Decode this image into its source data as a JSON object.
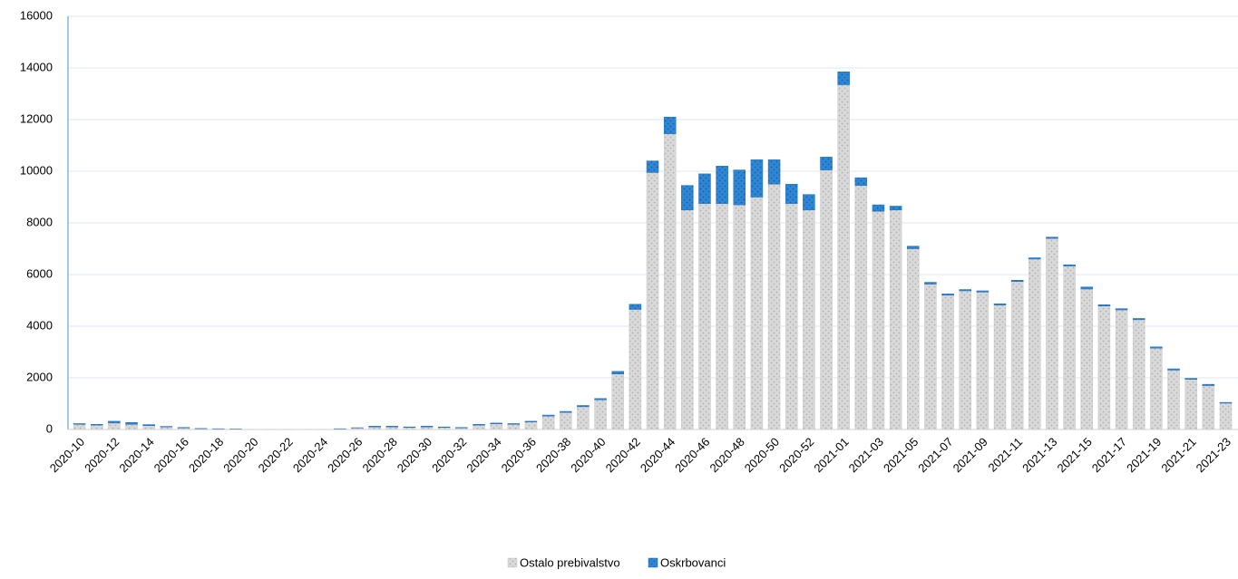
{
  "chart_data": {
    "type": "stacked_bar",
    "categories": [
      "2020-10",
      null,
      "2020-12",
      null,
      "2020-14",
      null,
      "2020-16",
      null,
      "2020-18",
      null,
      "2020-20",
      null,
      "2020-22",
      null,
      "2020-24",
      null,
      "2020-26",
      null,
      "2020-28",
      null,
      "2020-30",
      null,
      "2020-32",
      null,
      "2020-34",
      null,
      "2020-36",
      null,
      "2020-38",
      null,
      "2020-40",
      null,
      "2020-42",
      null,
      "2020-44",
      null,
      "2020-46",
      null,
      "2020-48",
      null,
      "2020-50",
      null,
      "2020-52",
      null,
      "2021-01",
      null,
      "2021-03",
      null,
      "2021-05",
      null,
      "2021-07",
      null,
      "2021-09",
      null,
      "2021-11",
      null,
      "2021-13",
      null,
      "2021-15",
      null,
      "2021-17",
      null,
      "2021-19",
      null,
      "2021-21",
      null,
      "2021-23"
    ],
    "series": [
      {
        "name": "Ostalo prebivalstvo",
        "color": "#d9d9d9",
        "values": [
          200,
          170,
          250,
          200,
          150,
          100,
          60,
          30,
          25,
          10,
          5,
          5,
          5,
          5,
          5,
          25,
          60,
          100,
          100,
          80,
          100,
          80,
          60,
          170,
          220,
          200,
          290,
          520,
          660,
          880,
          1150,
          2150,
          4650,
          9950,
          11450,
          8500,
          8750,
          8750,
          8700,
          9000,
          9500,
          8750,
          8500,
          10050,
          13350,
          9450,
          8450,
          8500,
          7000,
          5630,
          5200,
          5370,
          5320,
          4820,
          5730,
          6600,
          7400,
          6330,
          5440,
          4780,
          4630,
          4250,
          3150,
          2300,
          1940,
          1700,
          1020
        ]
      },
      {
        "name": "Oskrbovanci",
        "color": "#2e86d4",
        "values": [
          30,
          30,
          70,
          70,
          40,
          20,
          20,
          10,
          5,
          5,
          0,
          0,
          0,
          0,
          0,
          5,
          10,
          30,
          30,
          20,
          30,
          20,
          20,
          30,
          30,
          30,
          30,
          40,
          40,
          50,
          50,
          100,
          200,
          450,
          650,
          950,
          1150,
          1450,
          1350,
          1450,
          950,
          750,
          600,
          500,
          500,
          300,
          250,
          150,
          100,
          70,
          50,
          50,
          50,
          50,
          50,
          50,
          50,
          50,
          80,
          50,
          50,
          50,
          50,
          50,
          40,
          50,
          30
        ]
      }
    ],
    "ylim": [
      0,
      16000
    ],
    "yticks": [
      0,
      2000,
      4000,
      6000,
      8000,
      10000,
      12000,
      14000,
      16000
    ],
    "grid": true,
    "legend": "bottom"
  }
}
